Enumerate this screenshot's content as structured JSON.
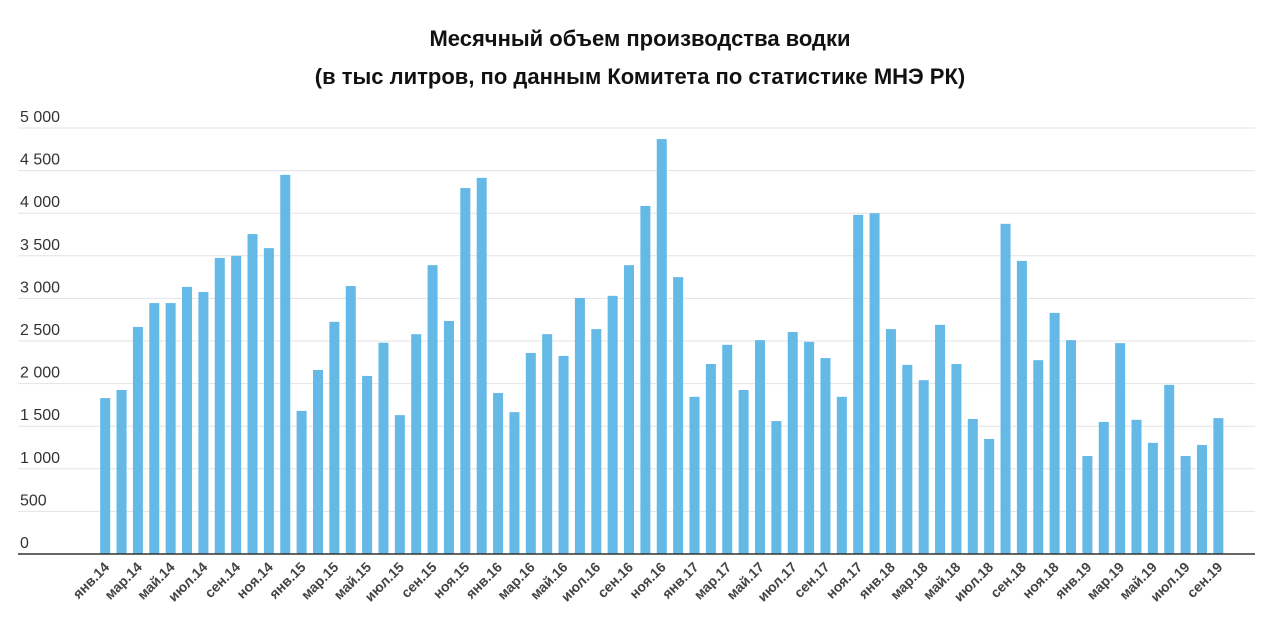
{
  "chart_data": {
    "type": "bar",
    "title": "Месячный объем производства водки",
    "subtitle": "(в тыс литров, по данным Комитета по статистике МНЭ РК)",
    "categories": [
      "янв.14",
      null,
      "мар.14",
      null,
      "май.14",
      null,
      "июл.14",
      null,
      "сен.14",
      null,
      "ноя.14",
      null,
      "янв.15",
      null,
      "мар.15",
      null,
      "май.15",
      null,
      "июл.15",
      null,
      "сен.15",
      null,
      "ноя.15",
      null,
      "янв.16",
      null,
      "мар.16",
      null,
      "май.16",
      null,
      "июл.16",
      null,
      "сен.16",
      null,
      "ноя.16",
      null,
      "янв.17",
      null,
      "мар.17",
      null,
      "май.17",
      null,
      "июл.17",
      null,
      "сен.17",
      null,
      "ноя.17",
      null,
      "янв.18",
      null,
      "мар.18",
      null,
      "май.18",
      null,
      "июл.18",
      null,
      "сен.18",
      null,
      "ноя.18",
      null,
      "янв.19",
      null,
      "мар.19",
      null,
      "май.19",
      null,
      "июл.19",
      null,
      "сен.19"
    ],
    "values": [
      1830,
      1925,
      2665,
      2945,
      2945,
      3135,
      3075,
      3475,
      3500,
      3755,
      3590,
      4450,
      1680,
      2160,
      2725,
      3145,
      2090,
      2480,
      1630,
      2580,
      3390,
      2735,
      4295,
      4415,
      1890,
      1665,
      2360,
      2580,
      2325,
      3005,
      2640,
      3030,
      3390,
      4085,
      4870,
      3250,
      1845,
      2230,
      2455,
      1925,
      2510,
      1560,
      2605,
      2490,
      2300,
      1845,
      3980,
      4000,
      2640,
      2220,
      2040,
      2690,
      2230,
      1585,
      1350,
      3875,
      3440,
      2275,
      2830,
      2510,
      1150,
      1550,
      2475,
      1575,
      1305,
      1985,
      1150,
      1280,
      1595
    ],
    "color": "#64b9e7",
    "ylim": [
      0,
      5000
    ],
    "yticks": [
      0,
      500,
      {
        "value": 1000,
        "label": "1 000"
      },
      {
        "value": 1500,
        "label": "1 500"
      },
      {
        "value": 2000,
        "label": "2 000"
      },
      {
        "value": 2500,
        "label": "2 500"
      },
      {
        "value": 3000,
        "label": "3 000"
      },
      {
        "value": 3500,
        "label": "3 500"
      },
      {
        "value": 4000,
        "label": "4 000"
      },
      {
        "value": 4500,
        "label": "4 500"
      },
      {
        "value": 5000,
        "label": "5 000"
      }
    ],
    "grid": true
  }
}
